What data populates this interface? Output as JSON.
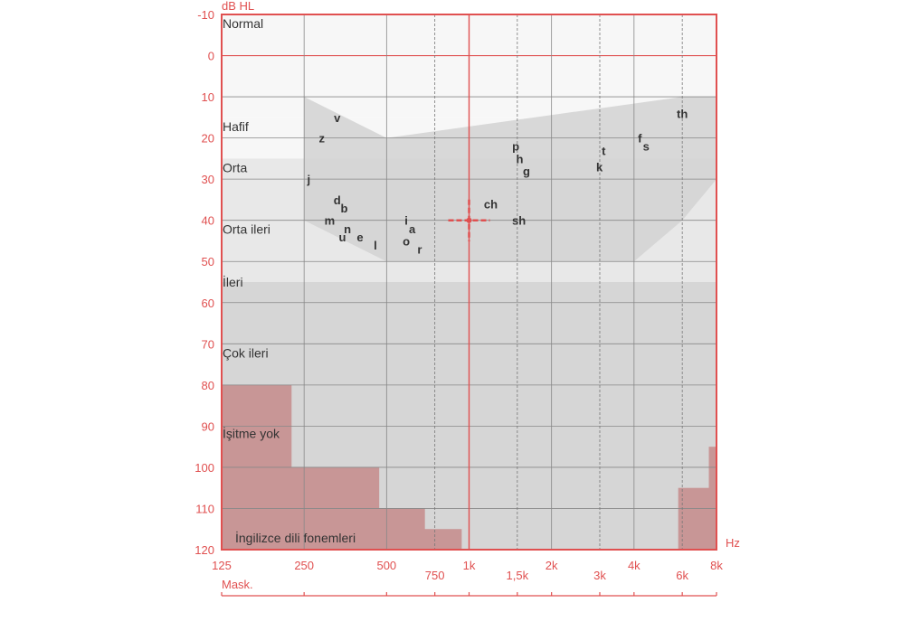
{
  "chart_data": {
    "type": "audiogram",
    "y_unit": "dB HL",
    "x_unit": "Hz",
    "masking_label": "Mask.",
    "ylim": [
      -10,
      120
    ],
    "y_ticks": [
      -10,
      0,
      10,
      20,
      30,
      40,
      50,
      60,
      70,
      80,
      90,
      100,
      110,
      120
    ],
    "x_ticks_major": [
      {
        "hz": 125,
        "label": "125"
      },
      {
        "hz": 250,
        "label": "250"
      },
      {
        "hz": 500,
        "label": "500"
      },
      {
        "hz": 1000,
        "label": "1k"
      },
      {
        "hz": 2000,
        "label": "2k"
      },
      {
        "hz": 4000,
        "label": "4k"
      },
      {
        "hz": 8000,
        "label": "8k"
      }
    ],
    "x_ticks_minor": [
      {
        "hz": 750,
        "label": "750"
      },
      {
        "hz": 1500,
        "label": "1,5k"
      },
      {
        "hz": 3000,
        "label": "3k"
      },
      {
        "hz": 6000,
        "label": "6k"
      }
    ],
    "severity_bands": [
      {
        "label": "Normal",
        "from": -10,
        "to": 15
      },
      {
        "label": "Hafif",
        "from": 15,
        "to": 25
      },
      {
        "label": "Orta",
        "from": 25,
        "to": 40
      },
      {
        "label": "Orta ileri",
        "from": 40,
        "to": 55
      },
      {
        "label": "İleri",
        "from": 55,
        "to": 70
      },
      {
        "label": "Çok ileri",
        "from": 70,
        "to": 90
      },
      {
        "label": "İşitme yok",
        "from": 90,
        "to": 120
      }
    ],
    "speech_banana": [
      [
        250,
        10
      ],
      [
        500,
        20
      ],
      [
        6000,
        10
      ],
      [
        8000,
        10
      ],
      [
        8000,
        30
      ],
      [
        6000,
        40
      ],
      [
        4000,
        50
      ],
      [
        500,
        50
      ],
      [
        250,
        40
      ]
    ],
    "phonemes": [
      {
        "text": "v",
        "hz": 330,
        "db": 15
      },
      {
        "text": "z",
        "hz": 290,
        "db": 20
      },
      {
        "text": "j",
        "hz": 260,
        "db": 30
      },
      {
        "text": "d",
        "hz": 330,
        "db": 35
      },
      {
        "text": "b",
        "hz": 350,
        "db": 37
      },
      {
        "text": "m",
        "hz": 310,
        "db": 40
      },
      {
        "text": "n",
        "hz": 360,
        "db": 42
      },
      {
        "text": "u",
        "hz": 345,
        "db": 44
      },
      {
        "text": "e",
        "hz": 400,
        "db": 44
      },
      {
        "text": "l",
        "hz": 455,
        "db": 46
      },
      {
        "text": "i",
        "hz": 590,
        "db": 40
      },
      {
        "text": "a",
        "hz": 620,
        "db": 42
      },
      {
        "text": "o",
        "hz": 590,
        "db": 45
      },
      {
        "text": "r",
        "hz": 660,
        "db": 47
      },
      {
        "text": "ch",
        "hz": 1200,
        "db": 36
      },
      {
        "text": "sh",
        "hz": 1520,
        "db": 40
      },
      {
        "text": "p",
        "hz": 1480,
        "db": 22
      },
      {
        "text": "h",
        "hz": 1530,
        "db": 25
      },
      {
        "text": "g",
        "hz": 1620,
        "db": 28
      },
      {
        "text": "t",
        "hz": 3100,
        "db": 23
      },
      {
        "text": "k",
        "hz": 2990,
        "db": 27
      },
      {
        "text": "f",
        "hz": 4200,
        "db": 20
      },
      {
        "text": "s",
        "hz": 4430,
        "db": 22
      },
      {
        "text": "th",
        "hz": 6000,
        "db": 14
      }
    ],
    "phoneme_area_label": "İngilizce dili fonemleri",
    "cursor": {
      "hz": 1000,
      "db": 40
    },
    "no_response_regions": [
      {
        "hz_from": 125,
        "hz_to": 225,
        "db_from": 80
      },
      {
        "hz_from": 125,
        "hz_to": 470,
        "db_from": 100
      },
      {
        "hz_from": 125,
        "hz_to": 690,
        "db_from": 110
      },
      {
        "hz_from": 125,
        "hz_to": 940,
        "db_from": 115
      },
      {
        "hz_from": 5800,
        "hz_to": 8000,
        "db_from": 105
      },
      {
        "hz_from": 7500,
        "hz_to": 8000,
        "db_from": 95
      }
    ],
    "colors": {
      "accent": "#e05050",
      "grid": "#888888",
      "band_light": "#f7f7f7",
      "band_mid": "#e8e8e8",
      "band_dark": "#d6d6d6",
      "banana": "#d2d2d2",
      "no_response": "#c89696"
    }
  }
}
